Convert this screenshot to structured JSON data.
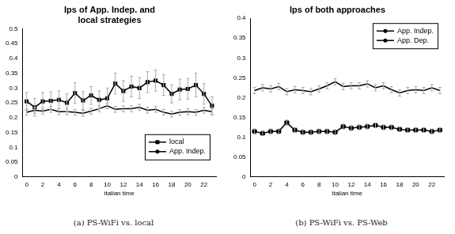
{
  "chart_data": [
    {
      "type": "line",
      "title": [
        "Ips of App. Indep. and",
        "local strategies"
      ],
      "caption": "(a) PS-WiFi vs. local",
      "x_label": "italian time",
      "categories": [
        "0",
        null,
        "2",
        null,
        "4",
        null,
        "6",
        null,
        "8",
        null,
        "10",
        null,
        "12",
        null,
        "14",
        null,
        "16",
        null,
        "18",
        null,
        "20",
        null,
        "22",
        null
      ],
      "series": [
        {
          "name": "local",
          "color": "#000000",
          "marker": "square",
          "line_style": "solid",
          "values": [
            0.255,
            0.235,
            0.255,
            0.257,
            0.26,
            0.25,
            0.283,
            0.258,
            0.275,
            0.26,
            0.265,
            0.315,
            0.29,
            0.305,
            0.3,
            0.32,
            0.325,
            0.31,
            0.28,
            0.295,
            0.297,
            0.31,
            0.28,
            0.24
          ],
          "errors": [
            0.03,
            0.03,
            0.03,
            0.03,
            0.03,
            0.03,
            0.035,
            0.03,
            0.03,
            0.03,
            0.035,
            0.035,
            0.035,
            0.035,
            0.035,
            0.035,
            0.035,
            0.035,
            0.03,
            0.035,
            0.035,
            0.04,
            0.035,
            0.03
          ]
        },
        {
          "name": "App. Indep.",
          "color": "#000000",
          "marker": "none",
          "line_style": "solid",
          "values": [
            0.218,
            0.225,
            0.222,
            0.228,
            0.22,
            0.22,
            0.218,
            0.215,
            0.222,
            0.23,
            0.24,
            0.228,
            0.23,
            0.23,
            0.235,
            0.225,
            0.228,
            0.218,
            0.212,
            0.218,
            0.22,
            0.218,
            0.225,
            0.22
          ],
          "errors": [
            0.01,
            0.01,
            0.01,
            0.01,
            0.01,
            0.01,
            0.01,
            0.01,
            0.01,
            0.01,
            0.01,
            0.01,
            0.01,
            0.01,
            0.01,
            0.01,
            0.01,
            0.01,
            0.01,
            0.01,
            0.01,
            0.01,
            0.01,
            0.01
          ]
        }
      ],
      "ylim": [
        0,
        0.5
      ],
      "yticks": [
        0,
        0.05,
        0.1,
        0.15,
        0.2,
        0.25,
        0.3,
        0.35,
        0.4,
        0.45,
        0.5
      ],
      "grid": false,
      "legend": "lower right"
    },
    {
      "type": "line",
      "title": [
        "Ips of both approaches"
      ],
      "caption": "(b) PS-WiFi vs. PS-Web",
      "x_label": "italian time",
      "categories": [
        "0",
        null,
        "2",
        null,
        "4",
        null,
        "6",
        null,
        "8",
        null,
        "10",
        null,
        "12",
        null,
        "14",
        null,
        "16",
        null,
        "18",
        null,
        "20",
        null,
        "22",
        null
      ],
      "series": [
        {
          "name": "App. Indep.",
          "color": "#000000",
          "marker": "none",
          "line_style": "solid",
          "values": [
            0.218,
            0.225,
            0.222,
            0.228,
            0.215,
            0.22,
            0.218,
            0.215,
            0.222,
            0.23,
            0.24,
            0.228,
            0.23,
            0.23,
            0.235,
            0.225,
            0.23,
            0.22,
            0.212,
            0.218,
            0.22,
            0.218,
            0.225,
            0.218
          ],
          "errors": [
            0.008,
            0.008,
            0.008,
            0.008,
            0.008,
            0.008,
            0.008,
            0.008,
            0.008,
            0.008,
            0.008,
            0.008,
            0.008,
            0.008,
            0.008,
            0.008,
            0.008,
            0.008,
            0.008,
            0.008,
            0.008,
            0.008,
            0.008,
            0.008
          ]
        },
        {
          "name": "App. Dep.",
          "color": "#000000",
          "marker": "circle",
          "line_style": "solid",
          "values": [
            0.115,
            0.11,
            0.115,
            0.115,
            0.137,
            0.118,
            0.113,
            0.113,
            0.115,
            0.115,
            0.113,
            0.127,
            0.123,
            0.125,
            0.127,
            0.13,
            0.125,
            0.125,
            0.12,
            0.118,
            0.118,
            0.118,
            0.115,
            0.118
          ],
          "errors": [
            0.006,
            0.006,
            0.006,
            0.006,
            0.006,
            0.006,
            0.006,
            0.006,
            0.006,
            0.006,
            0.006,
            0.006,
            0.006,
            0.006,
            0.006,
            0.006,
            0.006,
            0.006,
            0.006,
            0.006,
            0.006,
            0.006,
            0.006,
            0.006
          ]
        }
      ],
      "ylim": [
        0,
        0.4
      ],
      "yticks": [
        0,
        0.05,
        0.1,
        0.15,
        0.2,
        0.25,
        0.3,
        0.35,
        0.4
      ],
      "grid": false,
      "legend": "upper right"
    }
  ]
}
